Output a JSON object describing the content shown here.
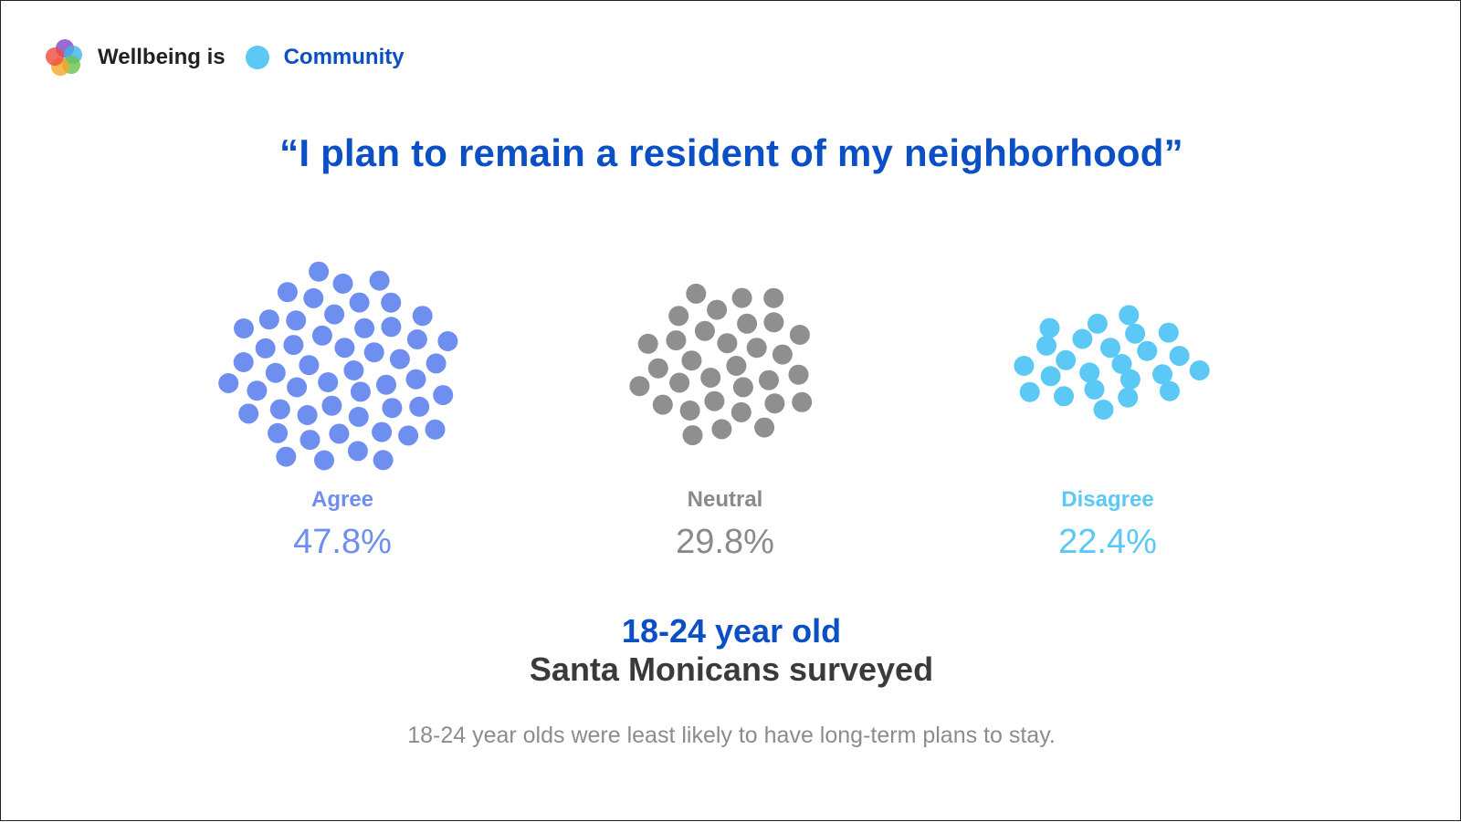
{
  "header": {
    "prefix": "Wellbeing is",
    "section": "Community",
    "section_color": "#5bc8f5",
    "logo_icon": "wellbeing-flower-logo"
  },
  "chart_data": {
    "type": "dot-cluster",
    "title": "“I plan to remain a resident of my neighborhood”",
    "categories": [
      "Agree",
      "Neutral",
      "Disagree"
    ],
    "values": [
      47.8,
      29.8,
      22.4
    ],
    "value_labels": [
      "47.8%",
      "29.8%",
      "22.4%"
    ],
    "colors": [
      "#6f8ff0",
      "#8f8f8f",
      "#5bc8f5"
    ],
    "label_colors": [
      "#6f8ff0",
      "#8a8a8a",
      "#5bc8f5"
    ],
    "dot_counts": [
      52,
      32,
      24
    ],
    "group": "18-24 year old",
    "subgroup": "Santa Monicans surveyed",
    "note": "18-24 year olds were least likely to have long-term plans to stay."
  }
}
